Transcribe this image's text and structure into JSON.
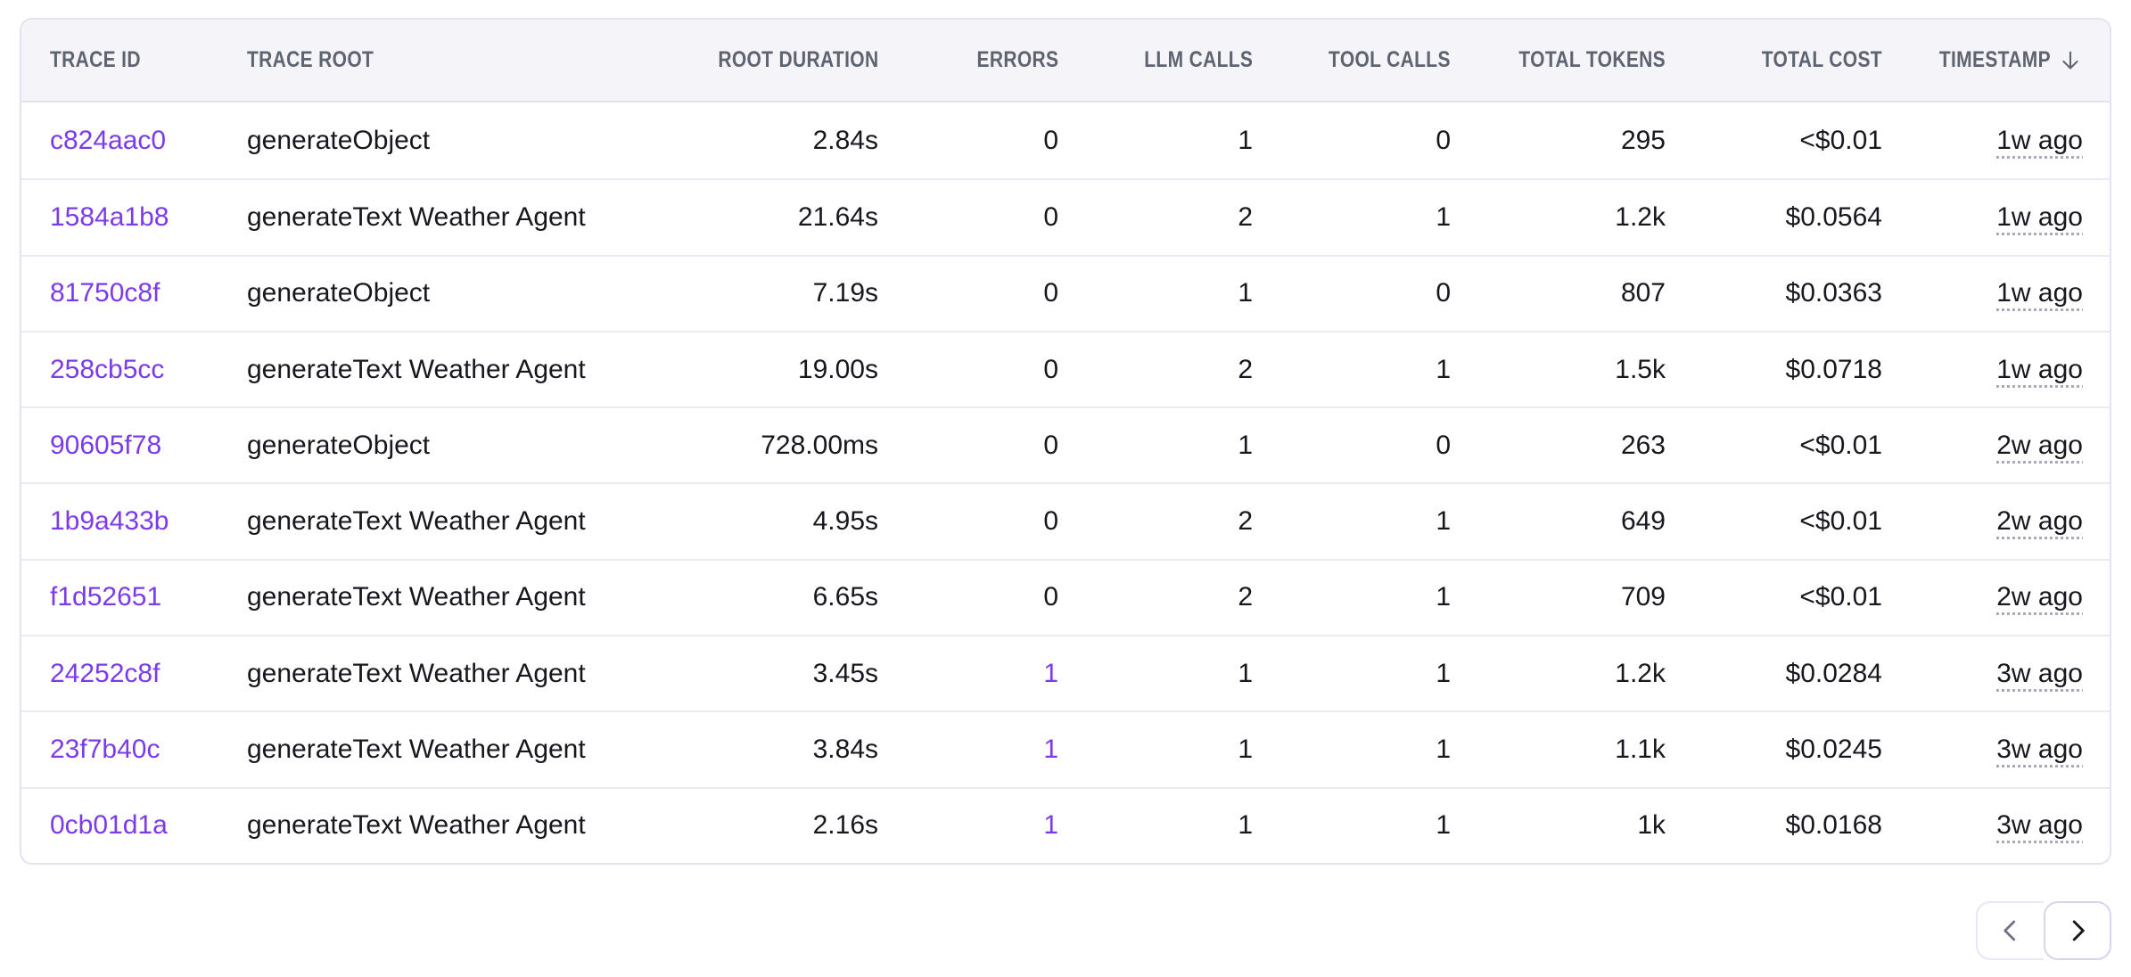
{
  "accent_color": "#7c3aed",
  "table": {
    "columns": [
      {
        "key": "trace_id",
        "label": "TRACE ID",
        "align": "left"
      },
      {
        "key": "trace_root",
        "label": "TRACE ROOT",
        "align": "left"
      },
      {
        "key": "root_duration",
        "label": "ROOT DURATION",
        "align": "right"
      },
      {
        "key": "errors",
        "label": "ERRORS",
        "align": "right"
      },
      {
        "key": "llm_calls",
        "label": "LLM CALLS",
        "align": "right"
      },
      {
        "key": "tool_calls",
        "label": "TOOL CALLS",
        "align": "right"
      },
      {
        "key": "total_tokens",
        "label": "TOTAL TOKENS",
        "align": "right"
      },
      {
        "key": "total_cost",
        "label": "TOTAL COST",
        "align": "right"
      },
      {
        "key": "timestamp",
        "label": "TIMESTAMP",
        "align": "right",
        "sorted": "desc"
      }
    ],
    "rows": [
      {
        "trace_id": "c824aac0",
        "trace_root": "generateObject",
        "root_duration": "2.84s",
        "errors": "0",
        "llm_calls": "1",
        "tool_calls": "0",
        "total_tokens": "295",
        "total_cost": "<$0.01",
        "timestamp": "1w ago"
      },
      {
        "trace_id": "1584a1b8",
        "trace_root": "generateText Weather Agent",
        "root_duration": "21.64s",
        "errors": "0",
        "llm_calls": "2",
        "tool_calls": "1",
        "total_tokens": "1.2k",
        "total_cost": "$0.0564",
        "timestamp": "1w ago"
      },
      {
        "trace_id": "81750c8f",
        "trace_root": "generateObject",
        "root_duration": "7.19s",
        "errors": "0",
        "llm_calls": "1",
        "tool_calls": "0",
        "total_tokens": "807",
        "total_cost": "$0.0363",
        "timestamp": "1w ago"
      },
      {
        "trace_id": "258cb5cc",
        "trace_root": "generateText Weather Agent",
        "root_duration": "19.00s",
        "errors": "0",
        "llm_calls": "2",
        "tool_calls": "1",
        "total_tokens": "1.5k",
        "total_cost": "$0.0718",
        "timestamp": "1w ago"
      },
      {
        "trace_id": "90605f78",
        "trace_root": "generateObject",
        "root_duration": "728.00ms",
        "errors": "0",
        "llm_calls": "1",
        "tool_calls": "0",
        "total_tokens": "263",
        "total_cost": "<$0.01",
        "timestamp": "2w ago"
      },
      {
        "trace_id": "1b9a433b",
        "trace_root": "generateText Weather Agent",
        "root_duration": "4.95s",
        "errors": "0",
        "llm_calls": "2",
        "tool_calls": "1",
        "total_tokens": "649",
        "total_cost": "<$0.01",
        "timestamp": "2w ago"
      },
      {
        "trace_id": "f1d52651",
        "trace_root": "generateText Weather Agent",
        "root_duration": "6.65s",
        "errors": "0",
        "llm_calls": "2",
        "tool_calls": "1",
        "total_tokens": "709",
        "total_cost": "<$0.01",
        "timestamp": "2w ago"
      },
      {
        "trace_id": "24252c8f",
        "trace_root": "generateText Weather Agent",
        "root_duration": "3.45s",
        "errors": "1",
        "llm_calls": "1",
        "tool_calls": "1",
        "total_tokens": "1.2k",
        "total_cost": "$0.0284",
        "timestamp": "3w ago"
      },
      {
        "trace_id": "23f7b40c",
        "trace_root": "generateText Weather Agent",
        "root_duration": "3.84s",
        "errors": "1",
        "llm_calls": "1",
        "tool_calls": "1",
        "total_tokens": "1.1k",
        "total_cost": "$0.0245",
        "timestamp": "3w ago"
      },
      {
        "trace_id": "0cb01d1a",
        "trace_root": "generateText Weather Agent",
        "root_duration": "2.16s",
        "errors": "1",
        "llm_calls": "1",
        "tool_calls": "1",
        "total_tokens": "1k",
        "total_cost": "$0.0168",
        "timestamp": "3w ago"
      }
    ]
  },
  "pagination": {
    "prev_icon": "chevron-left-icon",
    "next_icon": "chevron-right-icon",
    "prev_disabled": true
  }
}
